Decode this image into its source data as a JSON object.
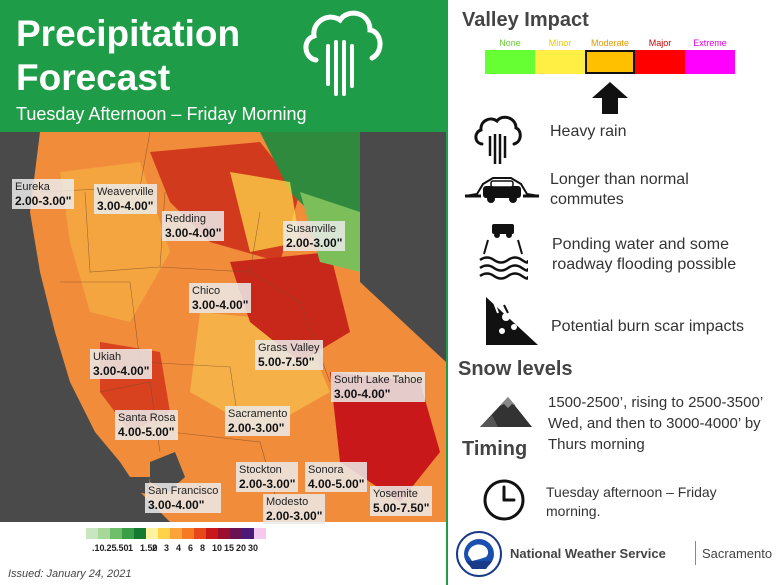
{
  "header": {
    "title_line1": "Precipitation",
    "title_line2": "Forecast",
    "subtitle": "Tuesday Afternoon – Friday Morning",
    "icon": "rain-cloud-icon"
  },
  "map": {
    "cities": [
      {
        "name": "Eureka",
        "amount": "2.00-3.00\""
      },
      {
        "name": "Weaverville",
        "amount": "3.00-4.00\""
      },
      {
        "name": "Redding",
        "amount": "3.00-4.00\""
      },
      {
        "name": "Susanville",
        "amount": "2.00-3.00\""
      },
      {
        "name": "Chico",
        "amount": "3.00-4.00\""
      },
      {
        "name": "Grass Valley",
        "amount": "5.00-7.50\""
      },
      {
        "name": "Ukiah",
        "amount": "3.00-4.00\""
      },
      {
        "name": "South Lake Tahoe",
        "amount": "3.00-4.00\""
      },
      {
        "name": "Santa Rosa",
        "amount": "4.00-5.00\""
      },
      {
        "name": "Sacramento",
        "amount": "2.00-3.00\""
      },
      {
        "name": "Stockton",
        "amount": "2.00-3.00\""
      },
      {
        "name": "Sonora",
        "amount": "4.00-5.00\""
      },
      {
        "name": "San Francisco",
        "amount": "3.00-4.00\""
      },
      {
        "name": "Modesto",
        "amount": "2.00-3.00\""
      },
      {
        "name": "Yosemite",
        "amount": "5.00-7.50\""
      }
    ]
  },
  "legend": {
    "ticks": [
      ".10",
      ".25",
      ".50",
      "1",
      "1.50",
      "2",
      "3",
      "4",
      "6",
      "8",
      "10",
      "15",
      "20",
      "30"
    ],
    "colors": [
      "#c8e6c0",
      "#a6d89a",
      "#6fbf6a",
      "#3a9e47",
      "#157a30",
      "#fff3a0",
      "#ffd24a",
      "#fca33a",
      "#f57a22",
      "#e8471c",
      "#c8181a",
      "#9b0e2e",
      "#6a1252",
      "#4b1a78",
      "#f5c8f0"
    ]
  },
  "issued": "Issued: January 24, 2021",
  "valley_impact": {
    "title": "Valley Impact",
    "levels": [
      {
        "label": "None",
        "color": "#66ff33"
      },
      {
        "label": "Minor",
        "color": "#ffee44"
      },
      {
        "label": "Moderate",
        "color": "#ffc000"
      },
      {
        "label": "Major",
        "color": "#ff0000"
      },
      {
        "label": "Extreme",
        "color": "#ff00ff"
      }
    ],
    "selected_level": "Moderate"
  },
  "impacts": [
    {
      "icon": "heavy-rain-icon",
      "text": "Heavy rain"
    },
    {
      "icon": "car-commute-icon",
      "text": "Longer than normal commutes"
    },
    {
      "icon": "flooded-road-icon",
      "text": "Ponding water and some roadway flooding possible"
    },
    {
      "icon": "burn-scar-icon",
      "text": "Potential burn scar impacts"
    }
  ],
  "snow": {
    "title": "Snow levels",
    "icon": "mountain-snow-icon",
    "text": "1500-2500’, rising to 2500-3500’ Wed, and then to 3000-4000’ by Thurs morning"
  },
  "timing": {
    "title": "Timing",
    "icon": "clock-icon",
    "text": "Tuesday afternoon – Friday morning."
  },
  "footer": {
    "logo": "nws-logo-icon",
    "logo_ring_text": "NATIONAL WEATHER SERVICE",
    "agency": "National Weather Service",
    "office": "Sacramento"
  }
}
